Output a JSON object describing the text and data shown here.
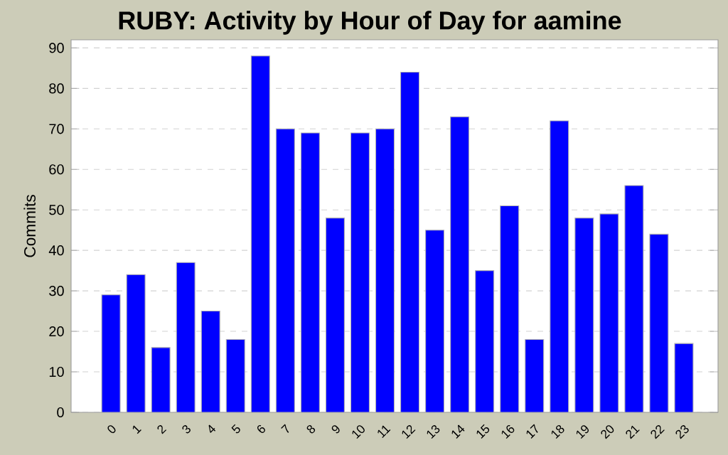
{
  "chart_data": {
    "type": "bar",
    "title": "RUBY: Activity by Hour of Day for aamine",
    "ylabel": "Commits",
    "categories": [
      "0",
      "1",
      "2",
      "3",
      "4",
      "5",
      "6",
      "7",
      "8",
      "9",
      "10",
      "11",
      "12",
      "13",
      "14",
      "15",
      "16",
      "17",
      "18",
      "19",
      "20",
      "21",
      "22",
      "23"
    ],
    "values": [
      29,
      34,
      16,
      37,
      25,
      18,
      88,
      70,
      69,
      48,
      69,
      70,
      84,
      45,
      73,
      35,
      51,
      18,
      72,
      48,
      49,
      56,
      44,
      17
    ],
    "color": "#0000ff",
    "ylim": [
      0,
      92
    ],
    "yticks": [
      0,
      10,
      20,
      30,
      40,
      50,
      60,
      70,
      80,
      90
    ],
    "grid": "y"
  }
}
